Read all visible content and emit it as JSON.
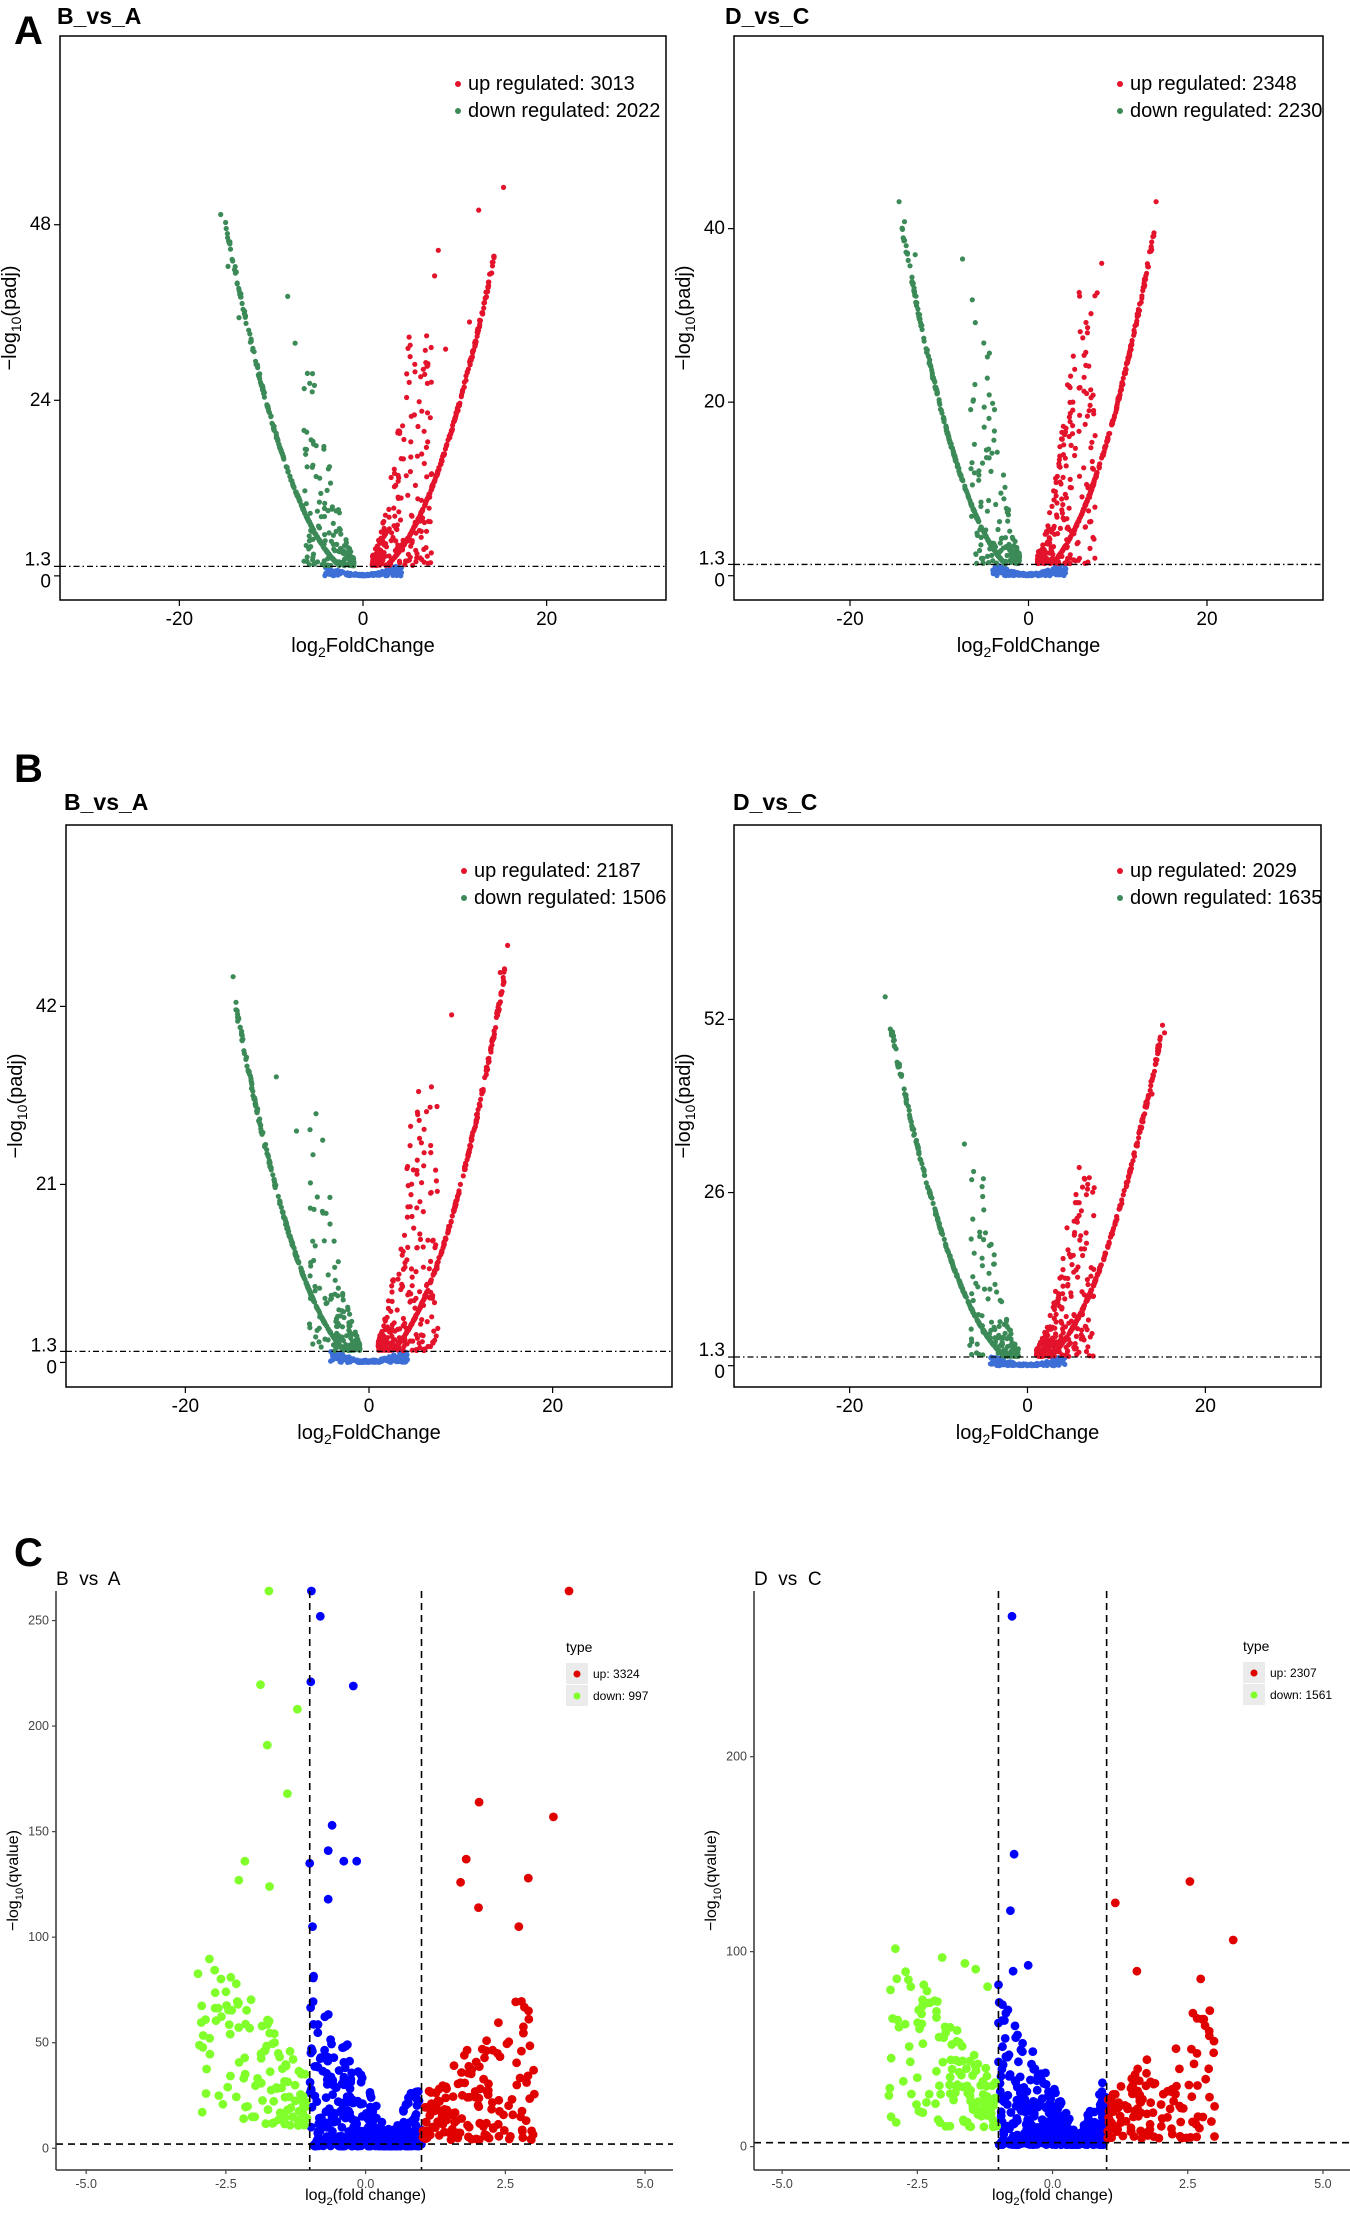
{
  "panel_letters": [
    "A",
    "B",
    "C"
  ],
  "chart_data": [
    {
      "panel": "A",
      "title": "B_vs_A",
      "type": "scatter",
      "xlabel": {
        "pre": "log",
        "sub": "2",
        "post": "FoldChange"
      },
      "ylabel": {
        "pre": "−log",
        "sub": "10",
        "post": "(padj)"
      },
      "xlim": [
        -33,
        33
      ],
      "ylim": [
        -3.3,
        73.8
      ],
      "xticks": [
        -20,
        0,
        20
      ],
      "yticks": [
        0,
        1.3,
        24,
        48
      ],
      "hline": 1.3,
      "vlines": [],
      "legend_title": "",
      "legend": [
        {
          "label": "up regulated: 3013",
          "color": "#e3132b"
        },
        {
          "label": "down regulated: 2022",
          "color": "#3b8a57"
        }
      ],
      "series_colors": {
        "up": "#e3132b",
        "down": "#3b8a57",
        "ns": "#3d6fd6"
      },
      "extreme_points": {
        "down": [
          [
            -15.5,
            49.4
          ],
          [
            -14.7,
            42.3
          ],
          [
            -13.5,
            35.3
          ],
          [
            -8.2,
            38.2
          ],
          [
            -7.4,
            31.8
          ],
          [
            -6.4,
            25.6
          ]
        ],
        "up": [
          [
            15.3,
            53.1
          ],
          [
            12.6,
            50
          ],
          [
            8.2,
            44.5
          ],
          [
            7.8,
            41
          ],
          [
            11.6,
            34.7
          ],
          [
            9,
            31
          ]
        ],
        "ns": []
      }
    },
    {
      "panel": "A",
      "title": "D_vs_C",
      "type": "scatter",
      "xlabel": {
        "pre": "log",
        "sub": "2",
        "post": "FoldChange"
      },
      "ylabel": {
        "pre": "−log",
        "sub": "10",
        "post": "(padj)"
      },
      "xlim": [
        -33,
        33
      ],
      "ylim": [
        -2.8,
        62.2
      ],
      "xticks": [
        -20,
        0,
        20
      ],
      "yticks": [
        0,
        1.3,
        20,
        40
      ],
      "hline": 1.3,
      "vlines": [],
      "legend_title": "",
      "legend": [
        {
          "label": "up regulated: 2348",
          "color": "#e3132b"
        },
        {
          "label": "down regulated: 2230",
          "color": "#3b8a57"
        }
      ],
      "series_colors": {
        "up": "#e3132b",
        "down": "#3b8a57",
        "ns": "#3d6fd6"
      },
      "extreme_points": {
        "down": [
          [
            -14.5,
            43.1
          ],
          [
            -13.9,
            40.8
          ],
          [
            -7.4,
            36.5
          ],
          [
            -12.7,
            37
          ],
          [
            -6.3,
            31.8
          ]
        ],
        "up": [
          [
            14.3,
            43.1
          ],
          [
            8.2,
            36
          ],
          [
            7.7,
            32.6
          ],
          [
            6.6,
            28
          ],
          [
            4.2,
            17
          ]
        ],
        "ns": []
      }
    },
    {
      "panel": "B",
      "title": "B_vs_A",
      "type": "scatter",
      "xlabel": {
        "pre": "log",
        "sub": "2",
        "post": "FoldChange"
      },
      "ylabel": {
        "pre": "−log",
        "sub": "10",
        "post": "(padj)"
      },
      "xlim": [
        -33,
        33
      ],
      "ylim": [
        -2.9,
        63.4
      ],
      "xticks": [
        -20,
        0,
        20
      ],
      "yticks": [
        0,
        1.3,
        21,
        42
      ],
      "hline": 1.3,
      "vlines": [],
      "legend_title": "",
      "legend": [
        {
          "label": "up regulated: 2187",
          "color": "#e3132b"
        },
        {
          "label": "down regulated: 1506",
          "color": "#3b8a57"
        }
      ],
      "series_colors": {
        "up": "#e3132b",
        "down": "#3b8a57",
        "ns": "#3d6fd6"
      },
      "extreme_points": {
        "down": [
          [
            -14.8,
            45.5
          ],
          [
            -14.2,
            40.6
          ],
          [
            -10.1,
            33.7
          ],
          [
            -7.9,
            27.3
          ],
          [
            -6.1,
            24.5
          ]
        ],
        "up": [
          [
            15.1,
            49.2
          ],
          [
            14.3,
            46
          ],
          [
            9,
            41
          ],
          [
            6.8,
            32.5
          ],
          [
            6,
            27.5
          ]
        ],
        "ns": []
      }
    },
    {
      "panel": "B",
      "title": "D_vs_C",
      "type": "scatter",
      "xlabel": {
        "pre": "log",
        "sub": "2",
        "post": "FoldChange"
      },
      "ylabel": {
        "pre": "−log",
        "sub": "10",
        "post": "(padj)"
      },
      "xlim": [
        -33,
        33
      ],
      "ylim": [
        -3.2,
        81.2
      ],
      "xticks": [
        -20,
        0,
        20
      ],
      "yticks": [
        0,
        1.3,
        26,
        52
      ],
      "hline": 1.3,
      "vlines": [],
      "legend_title": "",
      "legend": [
        {
          "label": "up regulated: 2029",
          "color": "#e3132b"
        },
        {
          "label": "down regulated: 1635",
          "color": "#3b8a57"
        }
      ],
      "series_colors": {
        "up": "#e3132b",
        "down": "#3b8a57",
        "ns": "#3d6fd6"
      },
      "extreme_points": {
        "down": [
          [
            -16,
            55.4
          ],
          [
            -15.3,
            50
          ],
          [
            -7.1,
            33.3
          ],
          [
            -5.1,
            26.9
          ]
        ],
        "up": [
          [
            15.4,
            50
          ],
          [
            14,
            40.8
          ],
          [
            5.6,
            24.5
          ],
          [
            4,
            16.1
          ]
        ],
        "ns": []
      }
    },
    {
      "panel": "C",
      "title": "B  vs  A",
      "type": "scatter",
      "xlabel": {
        "pre": "log",
        "sub": "2",
        "post": "(fold change)"
      },
      "ylabel": {
        "pre": "−log",
        "sub": "10",
        "post": "(qvalue)"
      },
      "xlim": [
        -5.54,
        5.5
      ],
      "ylim": [
        -10.3,
        264
      ],
      "xticks": [
        -5.0,
        -2.5,
        0.0,
        2.5,
        5.0
      ],
      "yticks": [
        0,
        50,
        100,
        150,
        200,
        250
      ],
      "hline": 2,
      "vlines": [
        -1,
        1
      ],
      "legend_title": "type",
      "legend": [
        {
          "label": "up: 3324",
          "color": "#e00000"
        },
        {
          "label": "down: 997",
          "color": "#80ff2a"
        }
      ],
      "series_colors": {
        "up": "#e00000",
        "down": "#80ff2a",
        "ns": "#0000ff"
      },
      "extreme_points": {
        "down": [
          [
            -1.73,
            264
          ],
          [
            -1.88,
            219.6
          ],
          [
            -1.22,
            208
          ],
          [
            -1.76,
            191
          ],
          [
            -1.4,
            168
          ],
          [
            -2.16,
            136
          ],
          [
            -2.27,
            127
          ],
          [
            -1.72,
            124
          ]
        ],
        "up": [
          [
            3.64,
            264
          ],
          [
            2.03,
            164
          ],
          [
            3.36,
            157
          ],
          [
            1.8,
            137
          ],
          [
            2.91,
            128
          ],
          [
            1.7,
            126
          ],
          [
            2.02,
            114
          ],
          [
            2.74,
            105
          ]
        ],
        "ns": [
          [
            -0.97,
            264
          ],
          [
            -0.81,
            252
          ],
          [
            -0.98,
            221
          ],
          [
            -0.22,
            219
          ],
          [
            -0.6,
            153
          ],
          [
            -0.67,
            141
          ],
          [
            -0.39,
            136
          ],
          [
            -0.16,
            136
          ],
          [
            -1.0,
            135
          ],
          [
            -0.67,
            118
          ],
          [
            -0.95,
            105
          ]
        ]
      }
    },
    {
      "panel": "C",
      "title": "D  vs  C",
      "type": "scatter",
      "xlabel": {
        "pre": "log",
        "sub": "2",
        "post": "(fold change)"
      },
      "ylabel": {
        "pre": "−log",
        "sub": "10",
        "post": "(qvalue)"
      },
      "xlim": [
        -5.52,
        5.5
      ],
      "ylim": [
        -12,
        285
      ],
      "xticks": [
        -5.0,
        -2.5,
        0.0,
        2.5,
        5.0
      ],
      "yticks": [
        0,
        100,
        200
      ],
      "hline": 2,
      "vlines": [
        -1,
        1
      ],
      "legend_title": "type",
      "legend": [
        {
          "label": "up: 2307",
          "color": "#e00000"
        },
        {
          "label": "down: 1561",
          "color": "#80ff2a"
        }
      ],
      "series_colors": {
        "up": "#e00000",
        "down": "#80ff2a",
        "ns": "#0000ff"
      },
      "extreme_points": {
        "down": [
          [
            -2.04,
            97
          ],
          [
            -1.62,
            94
          ],
          [
            -1.42,
            91
          ],
          [
            -2.62,
            82
          ],
          [
            -2.38,
            83
          ],
          [
            -1.2,
            82
          ]
        ],
        "up": [
          [
            2.54,
            136
          ],
          [
            1.16,
            125
          ],
          [
            3.34,
            106
          ],
          [
            1.56,
            90
          ],
          [
            2.74,
            86
          ],
          [
            2.82,
            62
          ]
        ],
        "ns": [
          [
            -0.75,
            272
          ],
          [
            -0.71,
            150
          ],
          [
            -0.78,
            121
          ],
          [
            -0.73,
            90
          ],
          [
            -0.45,
            93
          ],
          [
            -1.0,
            83
          ]
        ]
      }
    }
  ]
}
